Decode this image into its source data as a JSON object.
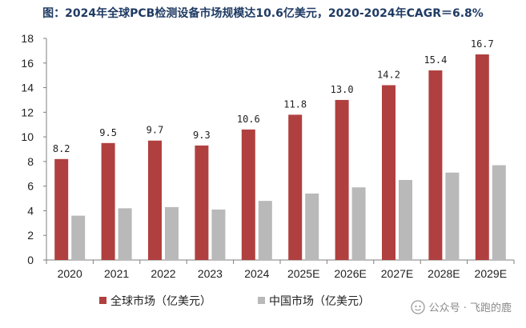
{
  "chart_data": {
    "type": "bar",
    "title": "图：2024年全球PCB检测设备市场规模达10.6亿美元，2020-2024年CAGR＝6.8%",
    "categories": [
      "2020",
      "2021",
      "2022",
      "2023",
      "2024",
      "2025E",
      "2026E",
      "2027E",
      "2028E",
      "2029E"
    ],
    "series": [
      {
        "name": "全球市场（亿美元）",
        "color": "#b0403f",
        "values": [
          8.2,
          9.5,
          9.7,
          9.3,
          10.6,
          11.8,
          13.0,
          14.2,
          15.4,
          16.7
        ],
        "data_labels": [
          "8.2",
          "9.5",
          "9.7",
          "9.3",
          "10.6",
          "11.8",
          "13.0",
          "14.2",
          "15.4",
          "16.7"
        ]
      },
      {
        "name": "中国市场（亿美元）",
        "color": "#b9b9b9",
        "values": [
          3.6,
          4.2,
          4.3,
          4.1,
          4.8,
          5.4,
          5.9,
          6.5,
          7.1,
          7.7
        ]
      }
    ],
    "ylim": [
      0,
      18
    ],
    "yticks": [
      "0",
      "2",
      "4",
      "6",
      "8",
      "10",
      "12",
      "14",
      "16",
      "18"
    ],
    "xlabel": "",
    "ylabel": "",
    "grid": false,
    "legend_position": "bottom"
  },
  "watermark": {
    "text": "公众号 · 飞跑的鹿",
    "icon": "wechat-icon"
  }
}
